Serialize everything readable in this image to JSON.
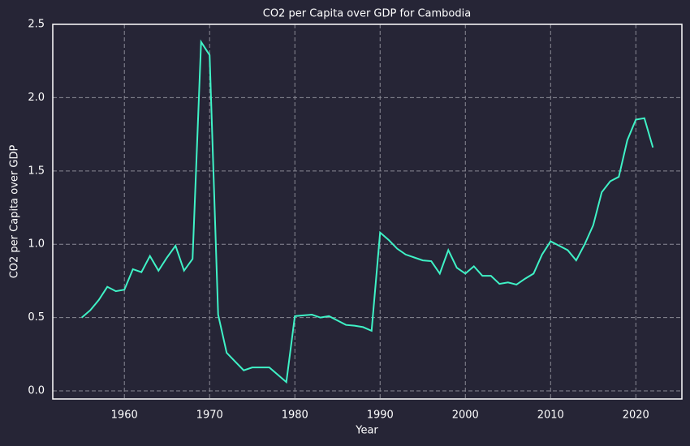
{
  "chart_data": {
    "type": "line",
    "title": "CO2 per Capita over GDP for Cambodia",
    "xlabel": "Year",
    "ylabel": "CO2 per Capita over GDP",
    "x": [
      1955,
      1956,
      1957,
      1958,
      1959,
      1960,
      1961,
      1962,
      1963,
      1964,
      1965,
      1966,
      1967,
      1968,
      1969,
      1970,
      1971,
      1972,
      1973,
      1974,
      1975,
      1976,
      1977,
      1978,
      1979,
      1980,
      1981,
      1982,
      1983,
      1984,
      1985,
      1986,
      1987,
      1988,
      1989,
      1990,
      1991,
      1992,
      1993,
      1994,
      1995,
      1996,
      1997,
      1998,
      1999,
      2000,
      2001,
      2002,
      2003,
      2004,
      2005,
      2006,
      2007,
      2008,
      2009,
      2010,
      2011,
      2012,
      2013,
      2014,
      2015,
      2016,
      2017,
      2018,
      2019,
      2020,
      2021,
      2022
    ],
    "series": [
      {
        "name": "CO2 per Capita over GDP",
        "color": "#3ff2c6",
        "values": [
          0.5,
          0.55,
          0.62,
          0.71,
          0.68,
          0.69,
          0.83,
          0.81,
          0.92,
          0.82,
          0.91,
          0.99,
          0.82,
          0.9,
          2.38,
          2.29,
          0.52,
          0.26,
          0.2,
          0.14,
          0.16,
          0.16,
          0.16,
          0.11,
          0.06,
          0.51,
          0.515,
          0.52,
          0.5,
          0.51,
          0.48,
          0.45,
          0.445,
          0.435,
          0.41,
          1.08,
          1.03,
          0.97,
          0.93,
          0.91,
          0.89,
          0.885,
          0.8,
          0.96,
          0.84,
          0.8,
          0.85,
          0.785,
          0.785,
          0.73,
          0.74,
          0.725,
          0.765,
          0.8,
          0.93,
          1.02,
          0.99,
          0.96,
          0.89,
          1.0,
          1.13,
          1.355,
          1.43,
          1.46,
          1.71,
          1.85,
          1.86,
          1.66
        ]
      }
    ],
    "xlim": [
      1951.6,
      2025.4
    ],
    "xticks": [
      1960,
      1970,
      1980,
      1990,
      2000,
      2010,
      2020
    ],
    "ylim": [
      -0.055,
      2.5
    ],
    "yticks": [
      {
        "value": 0,
        "label": "0.0"
      },
      0.5,
      {
        "value": 1,
        "label": "1.0"
      },
      1.5,
      {
        "value": 2,
        "label": "2.0"
      },
      2.5
    ],
    "grid": true
  }
}
